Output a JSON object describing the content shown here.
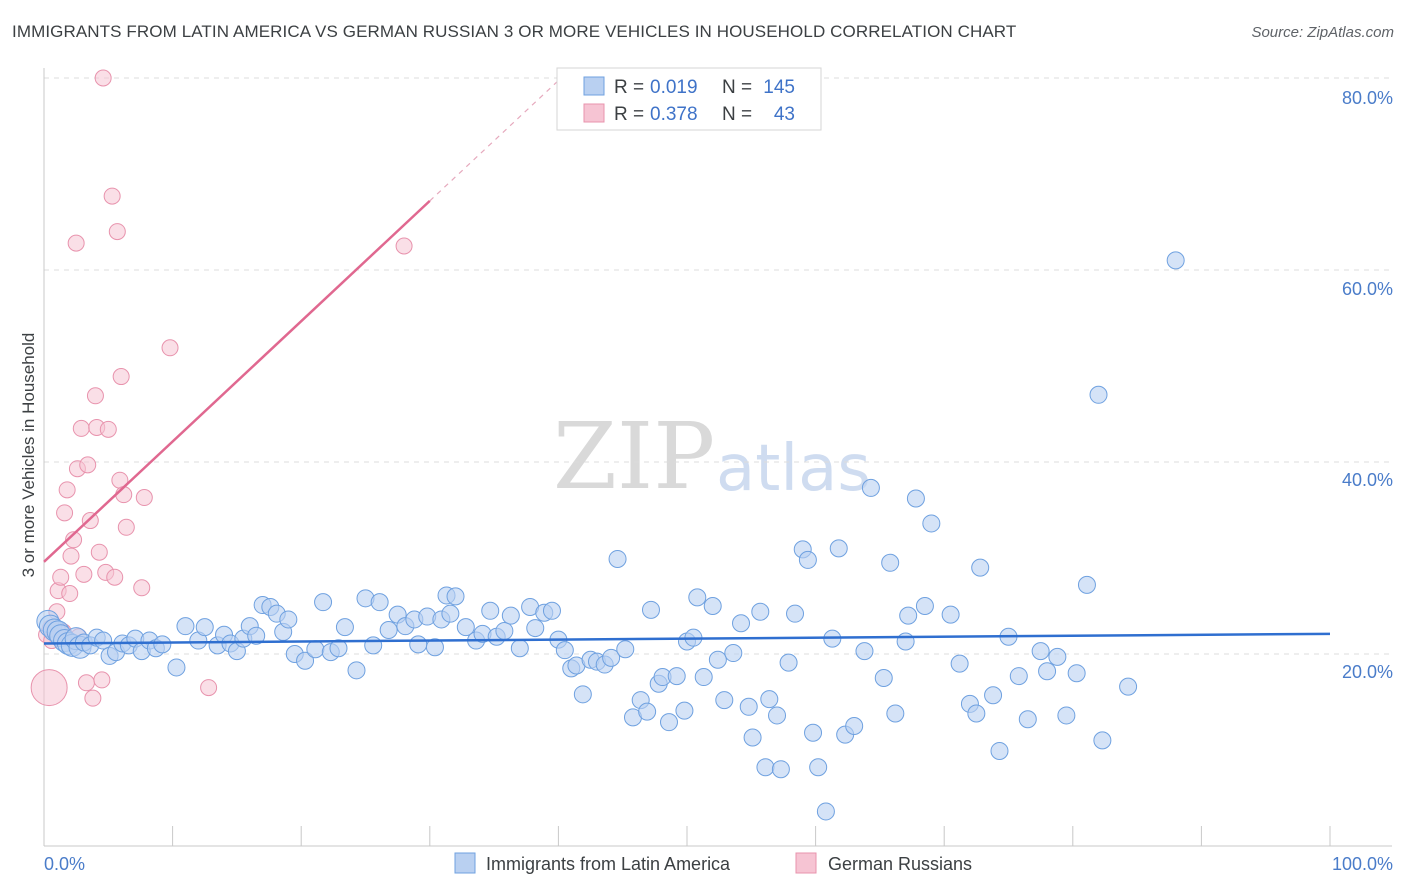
{
  "title": "IMMIGRANTS FROM LATIN AMERICA VS GERMAN RUSSIAN 3 OR MORE VEHICLES IN HOUSEHOLD CORRELATION CHART",
  "source": "Source: ZipAtlas.com",
  "watermark": {
    "zip": "ZIP",
    "atlas": "atlas"
  },
  "colors": {
    "blue": "#6fa1e0",
    "blue_fill": "#b9d0f1",
    "blue_line": "#2f6fd0",
    "pink": "#e893ad",
    "pink_fill": "#f6c4d3",
    "pink_line": "#e06890",
    "tick": "#4a7cc9"
  },
  "legend": {
    "rows": [
      {
        "r_label": "R = ",
        "r_value": "0.019",
        "n_label": "N = ",
        "n_value": "145"
      },
      {
        "r_label": "R = ",
        "r_value": "0.378",
        "n_label": "N = ",
        "n_value": "43"
      }
    ]
  },
  "chart_data": {
    "type": "scatter",
    "title": "IMMIGRANTS FROM LATIN AMERICA VS GERMAN RUSSIAN 3 OR MORE VEHICLES IN HOUSEHOLD CORRELATION CHART",
    "xlabel": "",
    "ylabel": "3 or more Vehicles in Household",
    "xlim": [
      0,
      100
    ],
    "ylim": [
      0,
      80
    ],
    "x_tick_labels": [
      "0.0%",
      "100.0%"
    ],
    "y_tick_labels": [
      "20.0%",
      "40.0%",
      "60.0%",
      "80.0%"
    ],
    "y_ticks": [
      20,
      40,
      60,
      80
    ],
    "legend_position": "bottom",
    "series": [
      {
        "name": "Immigrants from Latin America",
        "r": 0.019,
        "n": 145,
        "trend": {
          "x": [
            0,
            100
          ],
          "y": [
            21.1,
            22.1
          ]
        },
        "points": [
          [
            0.3,
            23.4
          ],
          [
            0.5,
            22.9
          ],
          [
            0.8,
            22.5
          ],
          [
            1.1,
            22.3
          ],
          [
            1.3,
            21.9
          ],
          [
            1.6,
            21.4
          ],
          [
            1.9,
            21.1
          ],
          [
            2.2,
            20.9
          ],
          [
            2.5,
            21.6
          ],
          [
            2.8,
            20.7
          ],
          [
            3.1,
            21.2
          ],
          [
            3.6,
            20.9
          ],
          [
            4.1,
            21.7
          ],
          [
            4.6,
            21.4
          ],
          [
            5.1,
            19.8
          ],
          [
            5.6,
            20.2
          ],
          [
            6.1,
            21.1
          ],
          [
            6.6,
            20.9
          ],
          [
            7.1,
            21.6
          ],
          [
            7.6,
            20.3
          ],
          [
            8.2,
            21.4
          ],
          [
            8.7,
            20.6
          ],
          [
            9.2,
            21.0
          ],
          [
            10.3,
            18.6
          ],
          [
            11.0,
            22.9
          ],
          [
            12.0,
            21.4
          ],
          [
            12.5,
            22.8
          ],
          [
            13.5,
            20.9
          ],
          [
            14.0,
            22.0
          ],
          [
            14.5,
            21.1
          ],
          [
            15.0,
            20.3
          ],
          [
            15.5,
            21.6
          ],
          [
            16.0,
            22.9
          ],
          [
            16.5,
            21.9
          ],
          [
            17.0,
            25.1
          ],
          [
            17.6,
            24.9
          ],
          [
            18.1,
            24.2
          ],
          [
            18.6,
            22.3
          ],
          [
            19.0,
            23.6
          ],
          [
            19.5,
            20.0
          ],
          [
            20.3,
            19.3
          ],
          [
            21.1,
            20.5
          ],
          [
            21.7,
            25.4
          ],
          [
            22.3,
            20.2
          ],
          [
            22.9,
            20.6
          ],
          [
            23.4,
            22.8
          ],
          [
            24.3,
            18.3
          ],
          [
            25.0,
            25.8
          ],
          [
            25.6,
            20.9
          ],
          [
            26.1,
            25.4
          ],
          [
            26.8,
            22.5
          ],
          [
            27.5,
            24.1
          ],
          [
            28.1,
            22.9
          ],
          [
            28.8,
            23.6
          ],
          [
            29.1,
            21.0
          ],
          [
            29.8,
            23.9
          ],
          [
            30.4,
            20.7
          ],
          [
            30.9,
            23.6
          ],
          [
            31.3,
            26.1
          ],
          [
            31.6,
            24.2
          ],
          [
            32.0,
            26.0
          ],
          [
            32.8,
            22.8
          ],
          [
            33.6,
            21.4
          ],
          [
            34.1,
            22.1
          ],
          [
            34.7,
            24.5
          ],
          [
            35.2,
            21.8
          ],
          [
            35.8,
            22.4
          ],
          [
            36.3,
            24.0
          ],
          [
            37.0,
            20.6
          ],
          [
            37.8,
            24.9
          ],
          [
            38.2,
            22.7
          ],
          [
            38.9,
            24.3
          ],
          [
            39.5,
            24.5
          ],
          [
            40.0,
            21.5
          ],
          [
            40.5,
            20.4
          ],
          [
            41.0,
            18.5
          ],
          [
            41.4,
            18.8
          ],
          [
            41.9,
            15.8
          ],
          [
            42.5,
            19.4
          ],
          [
            43.0,
            19.2
          ],
          [
            43.6,
            18.9
          ],
          [
            44.1,
            19.6
          ],
          [
            44.6,
            29.9
          ],
          [
            45.2,
            20.5
          ],
          [
            45.8,
            13.4
          ],
          [
            46.4,
            15.2
          ],
          [
            46.9,
            14.0
          ],
          [
            47.2,
            24.6
          ],
          [
            47.8,
            16.9
          ],
          [
            48.1,
            17.6
          ],
          [
            48.6,
            12.9
          ],
          [
            49.2,
            17.7
          ],
          [
            49.8,
            14.1
          ],
          [
            50.0,
            21.3
          ],
          [
            50.5,
            21.7
          ],
          [
            50.8,
            25.9
          ],
          [
            51.3,
            17.6
          ],
          [
            52.0,
            25.0
          ],
          [
            52.4,
            19.4
          ],
          [
            52.9,
            15.2
          ],
          [
            53.6,
            20.1
          ],
          [
            54.2,
            23.2
          ],
          [
            54.8,
            14.5
          ],
          [
            55.1,
            11.3
          ],
          [
            55.7,
            24.4
          ],
          [
            56.1,
            8.2
          ],
          [
            56.4,
            15.3
          ],
          [
            57.0,
            13.6
          ],
          [
            57.3,
            8.0
          ],
          [
            57.9,
            19.1
          ],
          [
            58.4,
            24.2
          ],
          [
            59.0,
            30.9
          ],
          [
            59.4,
            29.8
          ],
          [
            59.8,
            11.8
          ],
          [
            60.2,
            8.2
          ],
          [
            60.8,
            3.6
          ],
          [
            61.3,
            21.6
          ],
          [
            61.8,
            31.0
          ],
          [
            62.3,
            11.6
          ],
          [
            63.0,
            12.5
          ],
          [
            63.8,
            20.3
          ],
          [
            64.3,
            37.3
          ],
          [
            65.3,
            17.5
          ],
          [
            65.8,
            29.5
          ],
          [
            66.2,
            13.8
          ],
          [
            67.0,
            21.3
          ],
          [
            67.2,
            24.0
          ],
          [
            67.8,
            36.2
          ],
          [
            68.5,
            25.0
          ],
          [
            69.0,
            33.6
          ],
          [
            70.5,
            24.1
          ],
          [
            71.2,
            19.0
          ],
          [
            72.0,
            14.8
          ],
          [
            72.5,
            13.8
          ],
          [
            73.8,
            15.7
          ],
          [
            74.3,
            9.9
          ],
          [
            75.0,
            21.8
          ],
          [
            75.8,
            17.7
          ],
          [
            76.5,
            13.2
          ],
          [
            77.5,
            20.3
          ],
          [
            78.0,
            18.2
          ],
          [
            78.8,
            19.7
          ],
          [
            79.5,
            13.6
          ],
          [
            80.3,
            18.0
          ],
          [
            81.1,
            27.2
          ],
          [
            82.0,
            47.0
          ],
          [
            82.3,
            11.0
          ],
          [
            84.3,
            16.6
          ],
          [
            88.0,
            61.0
          ],
          [
            72.8,
            29.0
          ]
        ]
      },
      {
        "name": "German Russians",
        "r": 0.378,
        "n": 43,
        "trend": {
          "x": [
            0,
            30
          ],
          "y": [
            29.6,
            67.2
          ]
        },
        "points": [
          [
            0.2,
            22.0
          ],
          [
            0.4,
            16.5
          ],
          [
            0.6,
            21.4
          ],
          [
            0.8,
            22.6
          ],
          [
            1.0,
            24.4
          ],
          [
            1.1,
            26.6
          ],
          [
            1.3,
            28.0
          ],
          [
            1.4,
            22.1
          ],
          [
            1.6,
            34.7
          ],
          [
            1.8,
            37.1
          ],
          [
            2.0,
            26.3
          ],
          [
            2.1,
            30.2
          ],
          [
            2.3,
            31.9
          ],
          [
            2.5,
            62.8
          ],
          [
            2.6,
            39.3
          ],
          [
            2.9,
            43.5
          ],
          [
            3.1,
            28.3
          ],
          [
            3.3,
            17.0
          ],
          [
            3.4,
            39.7
          ],
          [
            3.6,
            33.9
          ],
          [
            3.8,
            15.4
          ],
          [
            4.0,
            46.9
          ],
          [
            4.1,
            43.6
          ],
          [
            4.3,
            30.6
          ],
          [
            4.5,
            17.3
          ],
          [
            4.6,
            80.0
          ],
          [
            4.8,
            28.5
          ],
          [
            5.0,
            43.4
          ],
          [
            5.3,
            67.7
          ],
          [
            5.5,
            28.0
          ],
          [
            5.7,
            64.0
          ],
          [
            5.9,
            38.1
          ],
          [
            6.0,
            48.9
          ],
          [
            6.2,
            36.6
          ],
          [
            6.4,
            33.2
          ],
          [
            7.6,
            26.9
          ],
          [
            7.8,
            36.3
          ],
          [
            9.8,
            51.9
          ],
          [
            12.8,
            16.5
          ],
          [
            28.0,
            62.5
          ],
          [
            0.5,
            22.7
          ],
          [
            1.5,
            22.3
          ],
          [
            2.7,
            21.8
          ]
        ]
      }
    ]
  },
  "bottom_legend": {
    "items": [
      {
        "label": "Immigrants from Latin America"
      },
      {
        "label": "German Russians"
      }
    ]
  }
}
